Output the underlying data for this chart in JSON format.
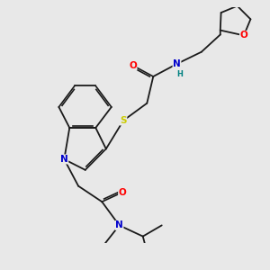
{
  "background_color": "#e8e8e8",
  "bond_color": "#1a1a1a",
  "atom_colors": {
    "O": "#ff0000",
    "N": "#0000cc",
    "S": "#cccc00",
    "H": "#008080",
    "C": "#1a1a1a"
  },
  "font_size_atom": 7.5,
  "figsize": [
    3.0,
    3.0
  ],
  "dpi": 100
}
